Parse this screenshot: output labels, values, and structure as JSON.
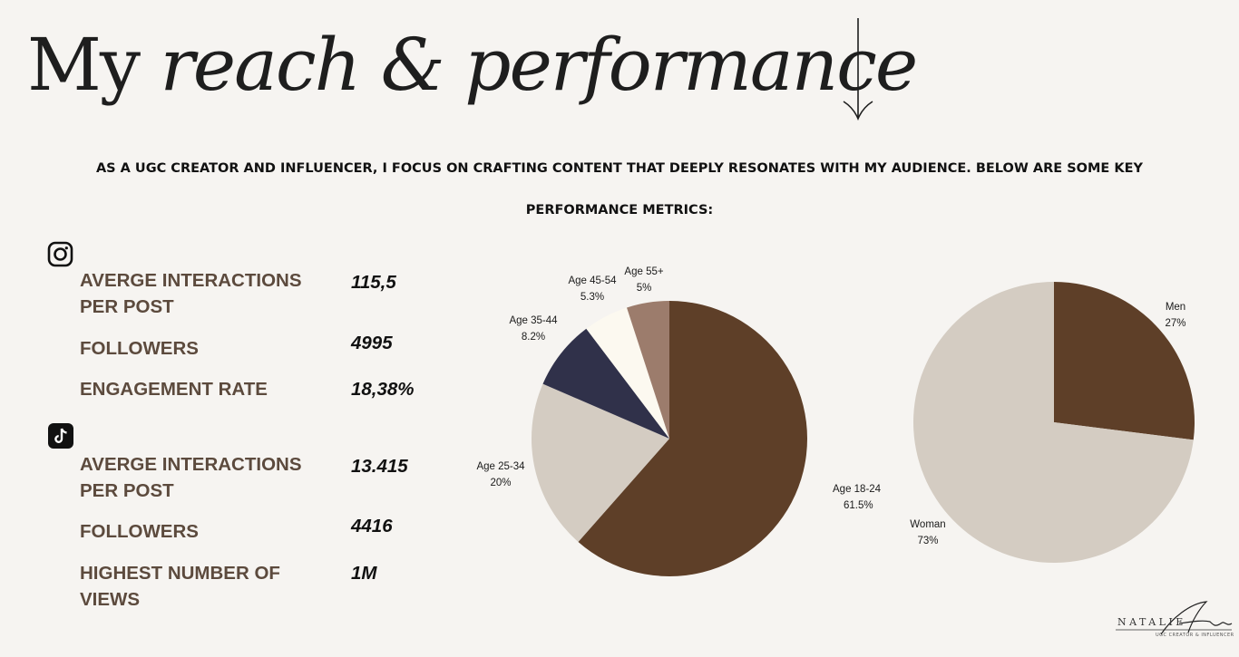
{
  "header": {
    "title_regular": "My ",
    "title_italic": "reach & performance",
    "intro_line1": "AS A UGC CREATOR AND INFLUENCER, I FOCUS ON CRAFTING CONTENT THAT DEEPLY RESONATES WITH MY AUDIENCE. BELOW ARE SOME KEY",
    "intro_line2": "PERFORMANCE METRICS:"
  },
  "instagram": {
    "icon": "instagram-icon",
    "interactions_label": "AVERGE INTERACTIONS PER POST",
    "interactions_value": "115,5",
    "followers_label": "FOLLOWERS",
    "followers_value": "4995",
    "engagement_label": "ENGAGEMENT RATE",
    "engagement_value": "18,38%"
  },
  "tiktok": {
    "icon": "tiktok-icon",
    "interactions_label": "AVERGE INTERACTIONS PER POST",
    "interactions_value": "13.415",
    "followers_label": "FOLLOWERS",
    "followers_value": "4416",
    "views_label": "HIGHEST NUMBER OF VIEWS",
    "views_value": "1M"
  },
  "chart_data": [
    {
      "type": "pie",
      "slices": [
        {
          "label": "Age 18-24",
          "value": 61.5,
          "pct": "61.5%",
          "color": "#5e3f28"
        },
        {
          "label": "Age 25-34",
          "value": 20,
          "pct": "20%",
          "color": "#d4ccc2"
        },
        {
          "label": "Age 35-44",
          "value": 8.2,
          "pct": "8.2%",
          "color": "#30314a"
        },
        {
          "label": "Age 45-54",
          "value": 5.3,
          "pct": "5.3%",
          "color": "#fcf9f0"
        },
        {
          "label": "Age 55+",
          "value": 5,
          "pct": "5%",
          "color": "#9c7c6c"
        }
      ]
    },
    {
      "type": "pie",
      "slices": [
        {
          "label": "Men",
          "value": 27,
          "pct": "27%",
          "color": "#5e3f28"
        },
        {
          "label": "Woman",
          "value": 73,
          "pct": "73%",
          "color": "#d4ccc2"
        }
      ]
    }
  ],
  "logo": {
    "name": "NATALIE",
    "signature": "Ann",
    "tagline": "UGC CREATOR & INFLUENCER"
  },
  "colors": {
    "background": "#f6f4f1",
    "label_brown": "#5c4a3d",
    "dark_brown": "#5e3f28",
    "beige": "#d4ccc2"
  }
}
